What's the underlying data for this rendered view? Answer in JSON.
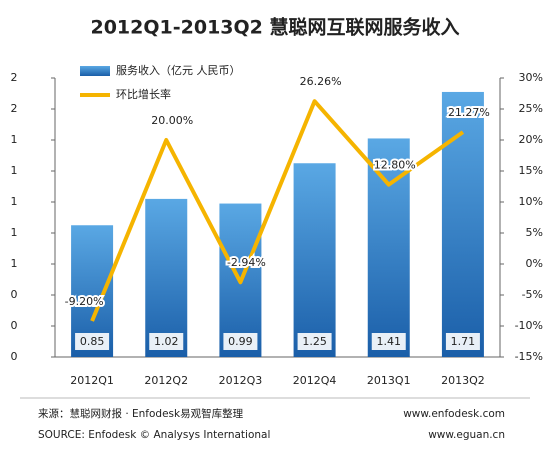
{
  "chart_data": {
    "type": "bar",
    "title": "2012Q1-2013Q2  慧聪网互联网服务收入",
    "categories": [
      "2012Q1",
      "2012Q2",
      "2012Q3",
      "2012Q4",
      "2013Q1",
      "2013Q2"
    ],
    "series": [
      {
        "name": "服务收入（亿元  人民币）",
        "color": "#2a78c8",
        "values": [
          0.85,
          1.02,
          0.99,
          1.25,
          1.41,
          1.71
        ]
      },
      {
        "name": "环比增长率",
        "type": "line",
        "axis": "y2",
        "color": "#f5b400",
        "values": [
          -9.2,
          20.0,
          -2.94,
          26.26,
          12.8,
          21.27
        ],
        "value_labels": [
          "-9.20%",
          "20.00%",
          "-2.94%",
          "26.26%",
          "12.80%",
          "21.27%"
        ]
      }
    ],
    "ylim": [
      0,
      1.8
    ],
    "yticks": [
      0,
      {
        "value": 0.2,
        "label": "0"
      },
      {
        "value": 0.4,
        "label": "0"
      },
      {
        "value": 0.6,
        "label": "1"
      },
      {
        "value": 0.8,
        "label": "1"
      },
      {
        "value": 1.0,
        "label": "1"
      },
      {
        "value": 1.2,
        "label": "1"
      },
      {
        "value": 1.4,
        "label": "1"
      },
      {
        "value": 1.6,
        "label": "2"
      },
      {
        "value": 1.8,
        "label": "2"
      }
    ],
    "y2lim": [
      -15,
      30
    ],
    "y2ticks": [
      {
        "value": -15,
        "label": "-15%"
      },
      {
        "value": -10,
        "label": "-10%"
      },
      {
        "value": -5,
        "label": "-5%"
      },
      {
        "value": 0,
        "label": "0%"
      },
      {
        "value": 5,
        "label": "5%"
      },
      {
        "value": 10,
        "label": "10%"
      },
      {
        "value": 15,
        "label": "15%"
      },
      {
        "value": 20,
        "label": "20%"
      },
      {
        "value": 25,
        "label": "25%"
      },
      {
        "value": 30,
        "label": "30%"
      }
    ],
    "footer": {
      "source_cn": "来源：慧聪网财报 · Enfodesk易观智库整理",
      "source_en": "SOURCE: Enfodesk © Analysys International",
      "url1": "www.enfodesk.com",
      "url2": "www.eguan.cn"
    }
  }
}
